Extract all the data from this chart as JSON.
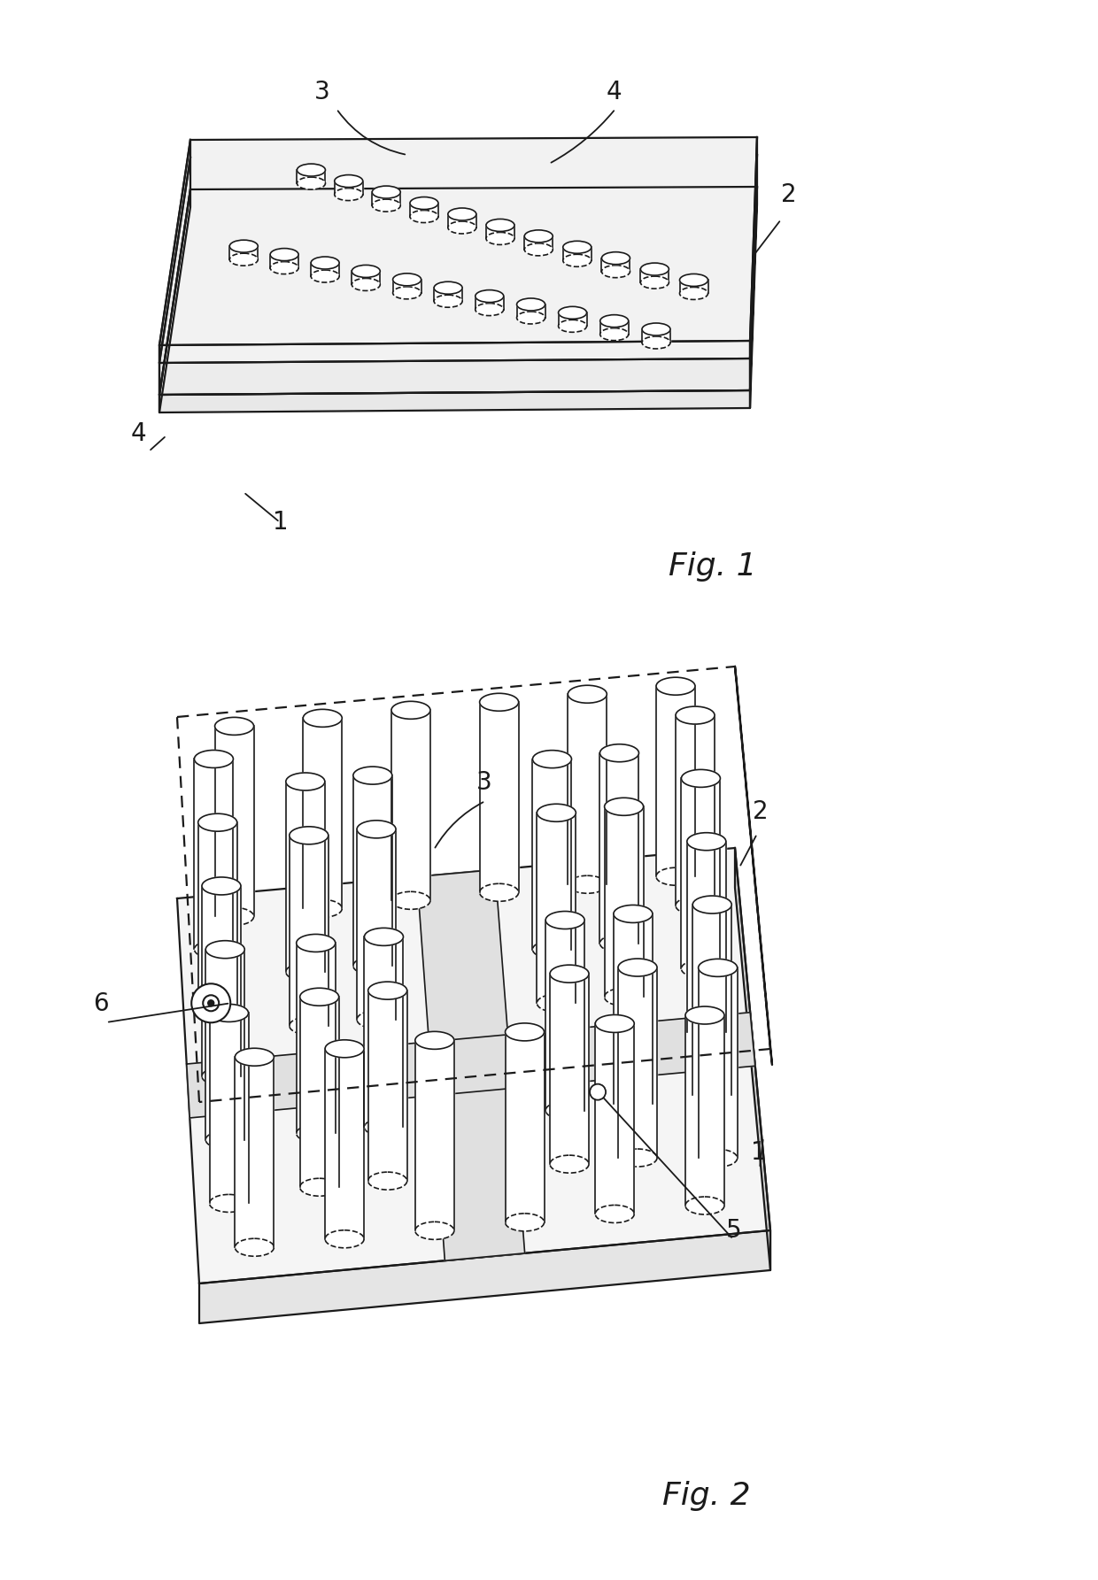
{
  "bg": "#ffffff",
  "lc": "#1a1a1a",
  "fig1_label": "Fig. 1",
  "fig2_label": "Fig. 2",
  "label_fs": 20,
  "fig_fs": 26
}
